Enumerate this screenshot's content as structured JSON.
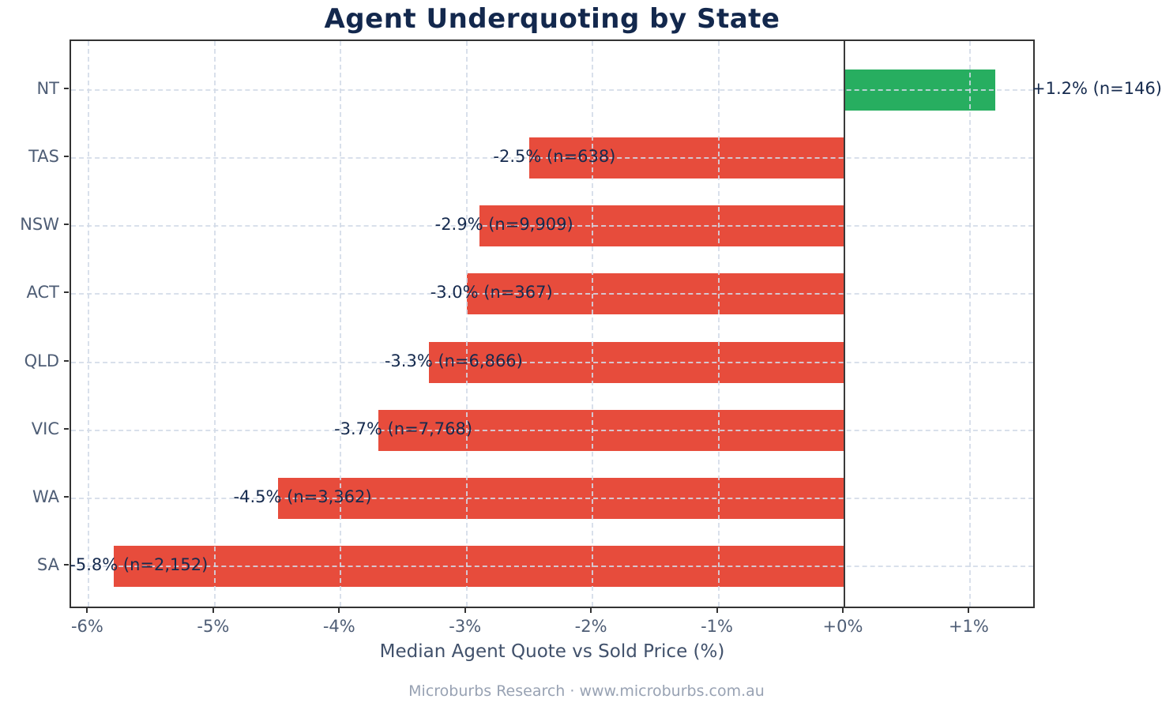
{
  "footer": "Microburbs Research · www.microburbs.com.au",
  "chart_data": {
    "type": "bar",
    "orientation": "horizontal",
    "title": "Agent Underquoting by State",
    "xlabel": "Median Agent Quote vs Sold Price (%)",
    "categories": [
      "NT",
      "TAS",
      "NSW",
      "ACT",
      "QLD",
      "VIC",
      "WA",
      "SA"
    ],
    "values": [
      1.2,
      -2.5,
      -2.9,
      -3.0,
      -3.3,
      -3.7,
      -4.5,
      -5.8
    ],
    "sample_sizes": [
      146,
      638,
      9909,
      367,
      6866,
      7768,
      3362,
      2152
    ],
    "bar_labels": [
      "+1.2% (n=146)",
      "-2.5% (n=638)",
      "-2.9% (n=9,909)",
      "-3.0% (n=367)",
      "-3.3% (n=6,866)",
      "-3.7% (n=7,768)",
      "-4.5% (n=3,362)",
      "-5.8% (n=2,152)"
    ],
    "x_ticks": [
      -6,
      -5,
      -4,
      -3,
      -2,
      -1,
      0,
      1
    ],
    "x_tick_labels": [
      "-6%",
      "-5%",
      "-4%",
      "-3%",
      "-2%",
      "-1%",
      "+0%",
      "+1%"
    ],
    "xlim": [
      -6.14,
      1.52
    ],
    "grid": true,
    "grid_style": "dashed",
    "legend": null,
    "colors": {
      "positive_bar": "#27ae60",
      "negative_bar": "#e74c3c",
      "bar_label_text": "#152a4e",
      "title_text": "#13284d",
      "axis_tick_text": "#4e5d75",
      "xlabel_text": "#41516b",
      "footer_text": "#98a2b3",
      "zero_line": "#3a3a3a",
      "spine": "#333333"
    }
  }
}
